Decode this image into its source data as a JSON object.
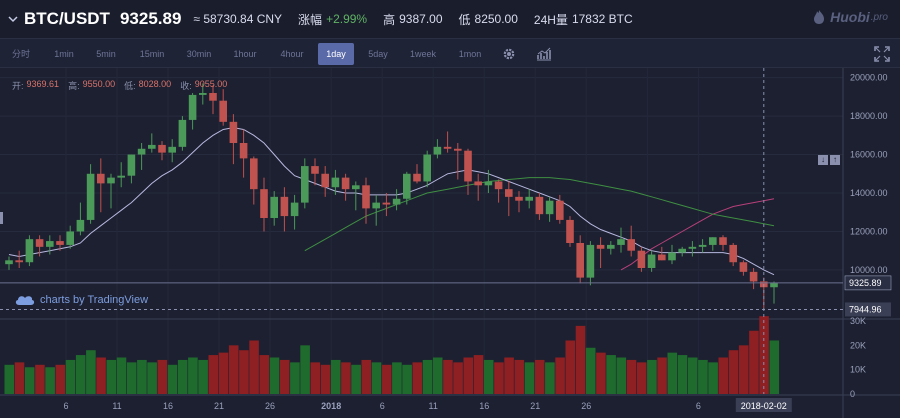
{
  "header": {
    "pair": "BTC/USDT",
    "price": "9325.89",
    "cny": "≈ 58730.84 CNY",
    "change_label": "涨幅",
    "change_value": "+2.99%",
    "high_label": "高",
    "high_value": "9387.00",
    "low_label": "低",
    "low_value": "8250.00",
    "vol_label": "24H量",
    "vol_value": "17832 BTC"
  },
  "brand": {
    "name": "Huobi",
    "suffix": ".pro"
  },
  "toolbar": {
    "intervals": [
      "分时",
      "1min",
      "5min",
      "15min",
      "30min",
      "1hour",
      "4hour",
      "1day",
      "5day",
      "1week",
      "1mon"
    ],
    "active": "1day"
  },
  "legend": {
    "open_label": "开:",
    "open": "9369.61",
    "high_label": "高:",
    "high": "9550.00",
    "low_label": "低:",
    "low": "8028.00",
    "close_label": "收:",
    "close": "9055.00"
  },
  "watermark": "charts by TradingView",
  "colors": {
    "up": "#4c9a5a",
    "down": "#c0524f",
    "vol_up": "#1f6b2e",
    "vol_down": "#8e1f22",
    "ma1": "#b8b8e0",
    "ma2": "#3f8f43",
    "ma3": "#b8407a"
  },
  "chart_data": {
    "type": "candlestick",
    "x_tick_labels": [
      "6",
      "11",
      "16",
      "21",
      "26",
      "2018",
      "6",
      "11",
      "16",
      "21",
      "26",
      "2018-02-02",
      "6"
    ],
    "price_axis_labels": [
      "20000.00",
      "18000.00",
      "16000.00",
      "14000.00",
      "12000.00",
      "10000.00"
    ],
    "volume_axis_labels": [
      "30K",
      "20K",
      "10K",
      "0"
    ],
    "last_price_label": "9325.89",
    "crosshair_price_label": "7944.96",
    "candles": [
      [
        10300,
        10700,
        10000,
        10500
      ],
      [
        10500,
        11000,
        10100,
        10400
      ],
      [
        10400,
        11800,
        10200,
        11600
      ],
      [
        11600,
        11800,
        10700,
        11200
      ],
      [
        11200,
        11800,
        10800,
        11500
      ],
      [
        11500,
        11800,
        11000,
        11300
      ],
      [
        11300,
        12300,
        11100,
        12000
      ],
      [
        12000,
        13500,
        11800,
        12600
      ],
      [
        12600,
        15500,
        12400,
        15000
      ],
      [
        15000,
        15800,
        13000,
        14500
      ],
      [
        14500,
        15000,
        13200,
        14800
      ],
      [
        14800,
        15600,
        14300,
        14900
      ],
      [
        14900,
        16000,
        14500,
        16000
      ],
      [
        16000,
        16600,
        15200,
        16300
      ],
      [
        16300,
        17100,
        16100,
        16500
      ],
      [
        16500,
        16700,
        15700,
        16100
      ],
      [
        16100,
        16800,
        15600,
        16400
      ],
      [
        16400,
        18000,
        16200,
        17800
      ],
      [
        17800,
        19200,
        17300,
        19100
      ],
      [
        19100,
        19700,
        18600,
        19200
      ],
      [
        19200,
        19600,
        18100,
        18800
      ],
      [
        18800,
        19400,
        17500,
        17700
      ],
      [
        17700,
        18100,
        15500,
        16600
      ],
      [
        16600,
        17300,
        14800,
        15800
      ],
      [
        15800,
        15900,
        13400,
        14200
      ],
      [
        14200,
        14800,
        12000,
        12700
      ],
      [
        12700,
        14100,
        12300,
        13800
      ],
      [
        13800,
        14300,
        12000,
        12800
      ],
      [
        12800,
        13900,
        12100,
        13500
      ],
      [
        13500,
        15800,
        13200,
        15400
      ],
      [
        15400,
        15800,
        14400,
        15000
      ],
      [
        15000,
        15400,
        13800,
        14300
      ],
      [
        14300,
        15200,
        13900,
        14800
      ],
      [
        14800,
        15000,
        13600,
        14200
      ],
      [
        14200,
        14600,
        13100,
        14400
      ],
      [
        14400,
        14800,
        12400,
        13200
      ],
      [
        13200,
        13900,
        12300,
        13500
      ],
      [
        13500,
        14000,
        12800,
        13400
      ],
      [
        13400,
        14200,
        13100,
        13700
      ],
      [
        13700,
        15100,
        13400,
        15000
      ],
      [
        15000,
        15500,
        14500,
        14600
      ],
      [
        14600,
        16200,
        14300,
        16000
      ],
      [
        16000,
        16800,
        15800,
        16400
      ],
      [
        16400,
        17200,
        16100,
        16300
      ],
      [
        16300,
        16600,
        14700,
        16200
      ],
      [
        16200,
        16300,
        13900,
        14600
      ],
      [
        14600,
        15000,
        13600,
        14400
      ],
      [
        14400,
        15200,
        14000,
        14600
      ],
      [
        14600,
        14700,
        13500,
        14200
      ],
      [
        14200,
        14600,
        12800,
        13800
      ],
      [
        13800,
        14100,
        13000,
        13600
      ],
      [
        13600,
        14200,
        13200,
        13800
      ],
      [
        13800,
        14000,
        12600,
        12900
      ],
      [
        12900,
        13800,
        12500,
        13600
      ],
      [
        13600,
        13900,
        12400,
        12600
      ],
      [
        12600,
        12800,
        11200,
        11400
      ],
      [
        11400,
        11800,
        9300,
        9600
      ],
      [
        9600,
        11500,
        9200,
        11300
      ],
      [
        11300,
        11700,
        10100,
        11100
      ],
      [
        11100,
        11500,
        10800,
        11300
      ],
      [
        11300,
        12200,
        10900,
        11600
      ],
      [
        11600,
        12300,
        10700,
        11000
      ],
      [
        11000,
        11200,
        9900,
        10100
      ],
      [
        10100,
        11000,
        9900,
        10800
      ],
      [
        10800,
        11200,
        10500,
        10500
      ],
      [
        10500,
        11300,
        10300,
        10900
      ],
      [
        10900,
        11200,
        10700,
        11100
      ],
      [
        11100,
        11500,
        10700,
        11200
      ],
      [
        11200,
        11600,
        10900,
        11300
      ],
      [
        11300,
        11700,
        11000,
        11700
      ],
      [
        11700,
        11800,
        11000,
        11300
      ],
      [
        11300,
        11400,
        10200,
        10400
      ],
      [
        10400,
        10500,
        9700,
        9900
      ],
      [
        9900,
        10100,
        9000,
        9400
      ],
      [
        9400,
        9600,
        8000,
        9100
      ],
      [
        9100,
        9400,
        8250,
        9326
      ]
    ],
    "volumes": [
      12,
      13,
      11,
      12,
      11,
      12,
      14,
      16,
      18,
      15,
      14,
      15,
      13,
      14,
      13,
      14,
      12,
      14,
      15,
      14,
      16,
      17,
      20,
      18,
      22,
      16,
      15,
      14,
      13,
      20,
      13,
      12,
      14,
      13,
      12,
      14,
      13,
      12,
      13,
      12,
      13,
      14,
      15,
      14,
      13,
      15,
      16,
      14,
      13,
      15,
      14,
      13,
      14,
      13,
      15,
      22,
      28,
      19,
      17,
      16,
      15,
      14,
      13,
      14,
      15,
      17,
      16,
      15,
      14,
      13,
      15,
      18,
      20,
      26,
      32,
      22
    ],
    "volume_up": [
      1,
      0,
      1,
      0,
      1,
      0,
      1,
      1,
      1,
      0,
      1,
      1,
      1,
      1,
      1,
      0,
      1,
      1,
      1,
      1,
      0,
      0,
      0,
      0,
      0,
      0,
      1,
      0,
      1,
      1,
      0,
      0,
      1,
      0,
      1,
      0,
      1,
      0,
      1,
      1,
      0,
      1,
      1,
      0,
      0,
      0,
      0,
      1,
      0,
      0,
      0,
      1,
      0,
      1,
      0,
      0,
      0,
      1,
      0,
      1,
      1,
      0,
      0,
      1,
      0,
      1,
      1,
      1,
      1,
      1,
      0,
      0,
      0,
      0,
      0,
      1
    ],
    "ma7": [
      10800,
      10700,
      10800,
      10900,
      11000,
      11100,
      11200,
      11400,
      11900,
      12300,
      12700,
      13100,
      13500,
      14000,
      14500,
      14900,
      15200,
      15600,
      16100,
      16600,
      17000,
      17300,
      17400,
      17300,
      17000,
      16600,
      16000,
      15400,
      14900,
      14700,
      14500,
      14300,
      14100,
      14000,
      14000,
      13900,
      13900,
      13900,
      13900,
      14000,
      14200,
      14400,
      14700,
      15000,
      15100,
      15200,
      15100,
      15000,
      14800,
      14600,
      14400,
      14200,
      14000,
      13800,
      13600,
      13300,
      12800,
      12400,
      12100,
      11900,
      11700,
      11500,
      11200,
      11000,
      10900,
      10900,
      10900,
      10900,
      10900,
      10900,
      10900,
      10800,
      10600,
      10300,
      10000,
      9750
    ],
    "ma30": [
      null,
      null,
      null,
      null,
      null,
      null,
      null,
      null,
      null,
      null,
      null,
      null,
      null,
      null,
      null,
      null,
      null,
      null,
      null,
      null,
      null,
      null,
      null,
      null,
      null,
      null,
      null,
      null,
      null,
      11000,
      11300,
      11600,
      11900,
      12200,
      12500,
      12800,
      13000,
      13200,
      13400,
      13600,
      13800,
      14000,
      14100,
      14200,
      14300,
      14400,
      14500,
      14600,
      14650,
      14700,
      14750,
      14800,
      14800,
      14800,
      14750,
      14700,
      14600,
      14500,
      14400,
      14300,
      14200,
      14100,
      13950,
      13800,
      13650,
      13500,
      13350,
      13200,
      13050,
      12900,
      12800,
      12700,
      12600,
      12500,
      12400,
      12300
    ],
    "ma60": [
      null,
      null,
      null,
      null,
      null,
      null,
      null,
      null,
      null,
      null,
      null,
      null,
      null,
      null,
      null,
      null,
      null,
      null,
      null,
      null,
      null,
      null,
      null,
      null,
      null,
      null,
      null,
      null,
      null,
      null,
      null,
      null,
      null,
      null,
      null,
      null,
      null,
      null,
      null,
      null,
      null,
      null,
      null,
      null,
      null,
      null,
      null,
      null,
      null,
      null,
      null,
      null,
      null,
      null,
      null,
      null,
      null,
      null,
      null,
      null,
      10000,
      10300,
      10700,
      11100,
      11400,
      11700,
      12000,
      12300,
      12600,
      12900,
      13100,
      13300,
      13400,
      13500,
      13600,
      13700
    ]
  }
}
